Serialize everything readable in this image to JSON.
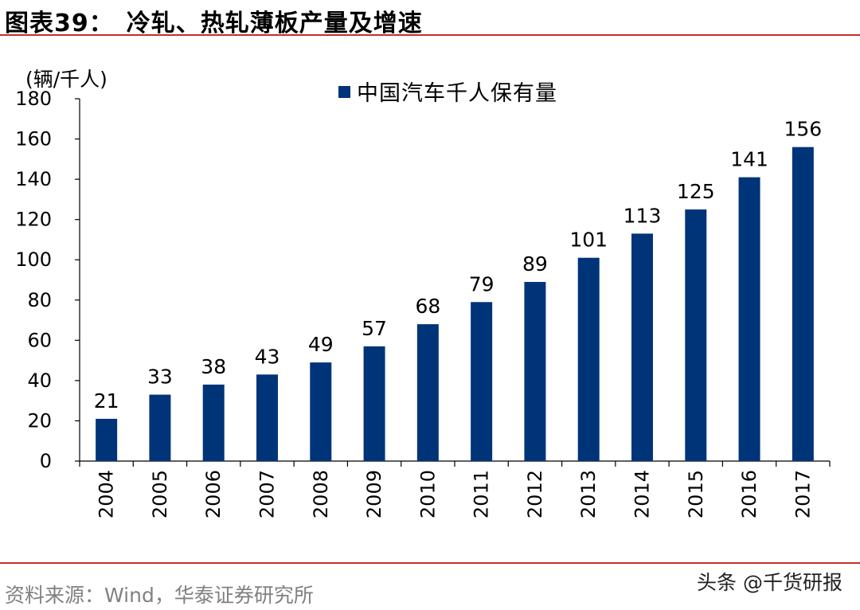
{
  "header": {
    "title": "图表39：　冷轧、热轧薄板产量及增速"
  },
  "footer": {
    "source": "资料来源：Wind，华泰证券研究所",
    "watermark": "头条 @千货研报"
  },
  "colors": {
    "bar": "#003479",
    "rule": "#c0302a"
  },
  "chart_data": {
    "type": "bar",
    "unit_label": "(辆/千人)",
    "categories": [
      "2004",
      "2005",
      "2006",
      "2007",
      "2008",
      "2009",
      "2010",
      "2011",
      "2012",
      "2013",
      "2014",
      "2015",
      "2016",
      "2017"
    ],
    "series": [
      {
        "name": "中国汽车千人保有量",
        "values": [
          21,
          33,
          38,
          43,
          49,
          57,
          68,
          79,
          89,
          101,
          113,
          125,
          141,
          156
        ]
      }
    ],
    "data_labels": [
      "21",
      "33",
      "38",
      "43",
      "49",
      "57",
      "68",
      "79",
      "89",
      "101",
      "113",
      "125",
      "141",
      "156"
    ],
    "ylim": [
      0,
      180
    ],
    "yticks": [
      "0",
      "20",
      "40",
      "60",
      "80",
      "100",
      "120",
      "140",
      "160",
      "180"
    ],
    "grid": false,
    "legend": "top-center",
    "xlabel": "",
    "ylabel": ""
  }
}
